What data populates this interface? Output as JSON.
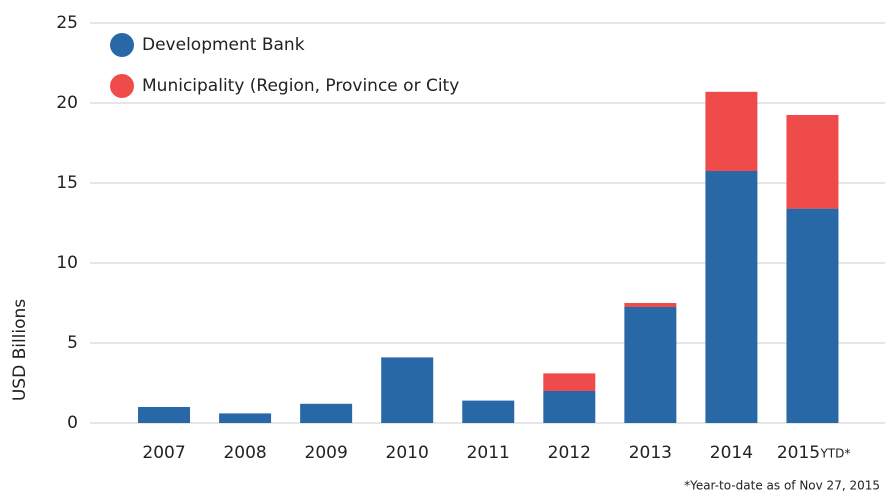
{
  "chart_data": {
    "type": "stacked_bar",
    "y_axis_label": "USD Billions",
    "categories": [
      "2007",
      "2008",
      "2009",
      "2010",
      "2011",
      "2012",
      "2013",
      "2014",
      "2015"
    ],
    "category_note": "YTD*",
    "footnote": "*Year-to-date as of Nov 27, 2015",
    "series": [
      {
        "name": "Development Bank",
        "color": "#2968a6",
        "values": [
          1.0,
          0.6,
          1.2,
          4.1,
          1.4,
          2.0,
          7.25,
          15.75,
          13.4
        ]
      },
      {
        "name": "Municipality (Region, Province or City",
        "color": "#ef4b4b",
        "values": [
          0,
          0,
          0,
          0,
          0,
          1.1,
          0.25,
          4.95,
          5.85
        ]
      }
    ],
    "ylim": [
      0,
      25
    ],
    "yticks": [
      0,
      5,
      10,
      15,
      20,
      25
    ],
    "grid": true,
    "legend": "top-left"
  }
}
